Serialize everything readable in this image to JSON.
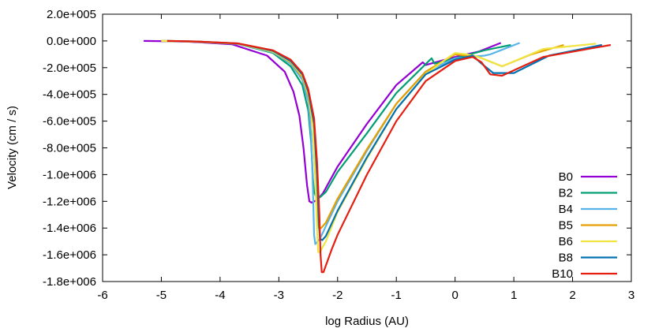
{
  "chart_data": {
    "type": "line",
    "title": "",
    "xlabel": "log Radius (AU)",
    "ylabel": "Velocity (cm / s)",
    "xlim": [
      -6,
      3
    ],
    "ylim": [
      -1800000,
      200000
    ],
    "x_ticks": [
      {
        "value": -6,
        "label": "-6"
      },
      {
        "value": -5,
        "label": "-5"
      },
      {
        "value": -4,
        "label": "-4"
      },
      {
        "value": -3,
        "label": "-3"
      },
      {
        "value": -2,
        "label": "-2"
      },
      {
        "value": -1,
        "label": "-1"
      },
      {
        "value": 0,
        "label": "0"
      },
      {
        "value": 1,
        "label": "1"
      },
      {
        "value": 2,
        "label": "2"
      },
      {
        "value": 3,
        "label": "3"
      }
    ],
    "y_ticks": [
      {
        "value": 200000,
        "label": "2.0e+005"
      },
      {
        "value": 0,
        "label": "0.0e+000"
      },
      {
        "value": -200000,
        "label": "-2.0e+005"
      },
      {
        "value": -400000,
        "label": "-4.0e+005"
      },
      {
        "value": -600000,
        "label": "-6.0e+005"
      },
      {
        "value": -800000,
        "label": "-8.0e+005"
      },
      {
        "value": -1000000,
        "label": "-1.0e+006"
      },
      {
        "value": -1200000,
        "label": "-1.2e+006"
      },
      {
        "value": -1400000,
        "label": "-1.4e+006"
      },
      {
        "value": -1600000,
        "label": "-1.6e+006"
      },
      {
        "value": -1800000,
        "label": "-1.8e+006"
      }
    ],
    "grid": false,
    "legend_position": "bottom-right",
    "series": [
      {
        "name": "B0",
        "color": "#9400d3",
        "points": [
          [
            -5.3,
            0
          ],
          [
            -4.6,
            -4000
          ],
          [
            -3.8,
            -25000
          ],
          [
            -3.2,
            -110000
          ],
          [
            -2.9,
            -230000
          ],
          [
            -2.75,
            -380000
          ],
          [
            -2.65,
            -560000
          ],
          [
            -2.58,
            -800000
          ],
          [
            -2.52,
            -1080000
          ],
          [
            -2.48,
            -1200000
          ],
          [
            -2.44,
            -1210000
          ],
          [
            -2.35,
            -1190000
          ],
          [
            -2.25,
            -1140000
          ],
          [
            -2.0,
            -940000
          ],
          [
            -1.5,
            -620000
          ],
          [
            -1.0,
            -330000
          ],
          [
            -0.55,
            -160000
          ],
          [
            -0.5,
            -180000
          ],
          [
            0.0,
            -120000
          ],
          [
            0.4,
            -80000
          ],
          [
            0.78,
            -15000
          ]
        ]
      },
      {
        "name": "B2",
        "color": "#009e73",
        "points": [
          [
            -5.0,
            0
          ],
          [
            -4.5,
            -4000
          ],
          [
            -3.7,
            -22000
          ],
          [
            -3.1,
            -90000
          ],
          [
            -2.8,
            -190000
          ],
          [
            -2.6,
            -330000
          ],
          [
            -2.5,
            -520000
          ],
          [
            -2.45,
            -760000
          ],
          [
            -2.42,
            -1030000
          ],
          [
            -2.4,
            -1130000
          ],
          [
            -2.36,
            -1170000
          ],
          [
            -2.3,
            -1170000
          ],
          [
            -2.2,
            -1130000
          ],
          [
            -2.0,
            -980000
          ],
          [
            -1.5,
            -690000
          ],
          [
            -1.0,
            -390000
          ],
          [
            -0.4,
            -130000
          ],
          [
            -0.35,
            -170000
          ],
          [
            0.0,
            -130000
          ],
          [
            0.5,
            -70000
          ],
          [
            0.95,
            -30000
          ]
        ]
      },
      {
        "name": "B4",
        "color": "#56b4e9",
        "points": [
          [
            -5.0,
            0
          ],
          [
            -4.5,
            -4000
          ],
          [
            -3.7,
            -21000
          ],
          [
            -3.1,
            -85000
          ],
          [
            -2.8,
            -170000
          ],
          [
            -2.6,
            -290000
          ],
          [
            -2.5,
            -450000
          ],
          [
            -2.45,
            -700000
          ],
          [
            -2.42,
            -1100000
          ],
          [
            -2.4,
            -1450000
          ],
          [
            -2.38,
            -1520000
          ],
          [
            -2.36,
            -1510000
          ],
          [
            -2.3,
            -1480000
          ],
          [
            -2.0,
            -1200000
          ],
          [
            -1.5,
            -820000
          ],
          [
            -1.0,
            -470000
          ],
          [
            -0.5,
            -230000
          ],
          [
            0.0,
            -130000
          ],
          [
            0.5,
            -110000
          ],
          [
            0.6,
            -100000
          ],
          [
            1.1,
            -15000
          ]
        ]
      },
      {
        "name": "B5",
        "color": "#e69f00",
        "points": [
          [
            -5.0,
            0
          ],
          [
            -4.5,
            -4000
          ],
          [
            -3.7,
            -20000
          ],
          [
            -3.1,
            -80000
          ],
          [
            -2.8,
            -160000
          ],
          [
            -2.6,
            -270000
          ],
          [
            -2.5,
            -410000
          ],
          [
            -2.42,
            -650000
          ],
          [
            -2.38,
            -1000000
          ],
          [
            -2.35,
            -1300000
          ],
          [
            -2.32,
            -1400000
          ],
          [
            -2.28,
            -1400000
          ],
          [
            -2.2,
            -1360000
          ],
          [
            -2.0,
            -1180000
          ],
          [
            -1.5,
            -810000
          ],
          [
            -1.0,
            -470000
          ],
          [
            -0.5,
            -230000
          ],
          [
            -0.2,
            -150000
          ],
          [
            0.0,
            -100000
          ],
          [
            0.2,
            -110000
          ],
          [
            0.4,
            -120000
          ],
          [
            0.8,
            -190000
          ],
          [
            1.3,
            -100000
          ],
          [
            1.85,
            -30000
          ]
        ]
      },
      {
        "name": "B6",
        "color": "#f0e442",
        "points": [
          [
            -5.0,
            0
          ],
          [
            -4.5,
            -4000
          ],
          [
            -3.7,
            -20000
          ],
          [
            -3.1,
            -80000
          ],
          [
            -2.8,
            -155000
          ],
          [
            -2.6,
            -260000
          ],
          [
            -2.5,
            -400000
          ],
          [
            -2.42,
            -640000
          ],
          [
            -2.38,
            -1000000
          ],
          [
            -2.35,
            -1400000
          ],
          [
            -2.33,
            -1580000
          ],
          [
            -2.3,
            -1580000
          ],
          [
            -2.2,
            -1500000
          ],
          [
            -2.0,
            -1280000
          ],
          [
            -1.5,
            -880000
          ],
          [
            -1.0,
            -510000
          ],
          [
            -0.5,
            -250000
          ],
          [
            -0.2,
            -150000
          ],
          [
            0.0,
            -90000
          ],
          [
            0.2,
            -100000
          ],
          [
            0.4,
            -120000
          ],
          [
            0.8,
            -190000
          ],
          [
            1.5,
            -60000
          ],
          [
            2.4,
            -20000
          ]
        ]
      },
      {
        "name": "B8",
        "color": "#0072b2",
        "points": [
          [
            -4.9,
            0
          ],
          [
            -4.4,
            -4000
          ],
          [
            -3.7,
            -19000
          ],
          [
            -3.1,
            -75000
          ],
          [
            -2.8,
            -150000
          ],
          [
            -2.6,
            -250000
          ],
          [
            -2.5,
            -380000
          ],
          [
            -2.4,
            -620000
          ],
          [
            -2.35,
            -1000000
          ],
          [
            -2.32,
            -1350000
          ],
          [
            -2.3,
            -1480000
          ],
          [
            -2.26,
            -1490000
          ],
          [
            -2.2,
            -1460000
          ],
          [
            -2.0,
            -1270000
          ],
          [
            -1.5,
            -870000
          ],
          [
            -1.0,
            -510000
          ],
          [
            -0.5,
            -250000
          ],
          [
            0.0,
            -140000
          ],
          [
            0.3,
            -110000
          ],
          [
            0.45,
            -170000
          ],
          [
            0.65,
            -240000
          ],
          [
            1.0,
            -240000
          ],
          [
            1.6,
            -110000
          ],
          [
            2.5,
            -30000
          ]
        ]
      },
      {
        "name": "B10",
        "color": "#e51e10",
        "points": [
          [
            -4.9,
            0
          ],
          [
            -4.4,
            -4000
          ],
          [
            -3.7,
            -18000
          ],
          [
            -3.1,
            -70000
          ],
          [
            -2.8,
            -140000
          ],
          [
            -2.6,
            -240000
          ],
          [
            -2.5,
            -360000
          ],
          [
            -2.4,
            -580000
          ],
          [
            -2.35,
            -900000
          ],
          [
            -2.31,
            -1300000
          ],
          [
            -2.29,
            -1600000
          ],
          [
            -2.27,
            -1730000
          ],
          [
            -2.24,
            -1730000
          ],
          [
            -2.1,
            -1560000
          ],
          [
            -2.0,
            -1450000
          ],
          [
            -1.5,
            -1000000
          ],
          [
            -1.0,
            -600000
          ],
          [
            -0.5,
            -300000
          ],
          [
            0.0,
            -150000
          ],
          [
            0.3,
            -120000
          ],
          [
            0.45,
            -160000
          ],
          [
            0.6,
            -250000
          ],
          [
            0.8,
            -260000
          ],
          [
            1.5,
            -120000
          ],
          [
            2.65,
            -30000
          ]
        ]
      }
    ]
  }
}
